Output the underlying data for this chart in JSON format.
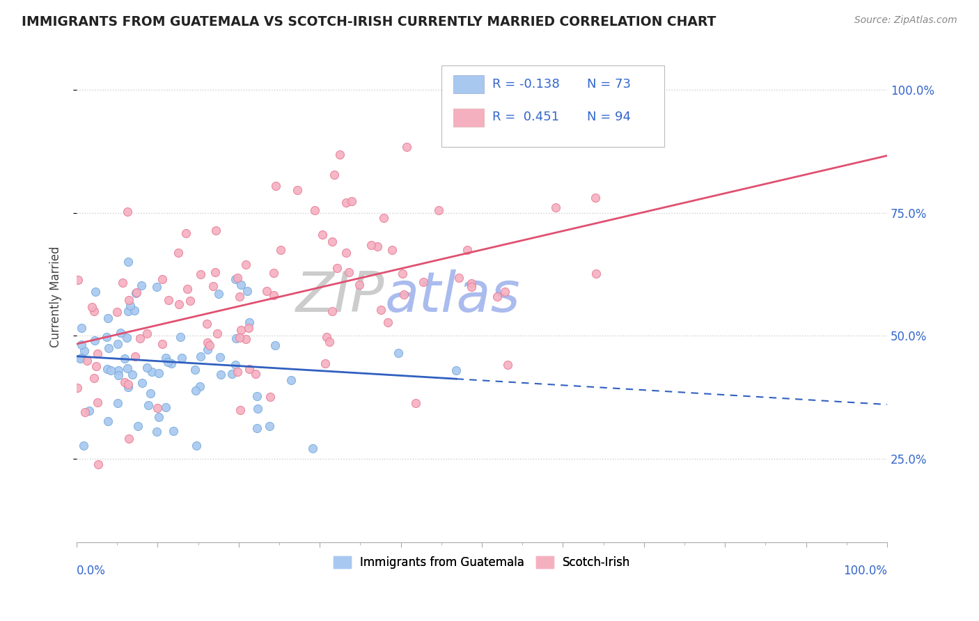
{
  "title": "IMMIGRANTS FROM GUATEMALA VS SCOTCH-IRISH CURRENTLY MARRIED CORRELATION CHART",
  "source_text": "Source: ZipAtlas.com",
  "ylabel": "Currently Married",
  "y_tick_labels": [
    "25.0%",
    "50.0%",
    "75.0%",
    "100.0%"
  ],
  "y_tick_values": [
    0.25,
    0.5,
    0.75,
    1.0
  ],
  "legend_blue_label": "Immigrants from Guatemala",
  "legend_pink_label": "Scotch-Irish",
  "blue_r": -0.138,
  "blue_n": 73,
  "pink_r": 0.451,
  "pink_n": 94,
  "blue_color": "#A8C8F0",
  "blue_edge_color": "#7AAEDD",
  "pink_color": "#F5B0C0",
  "pink_edge_color": "#E8809A",
  "blue_line_color": "#3060C0",
  "pink_line_color": "#E05070",
  "label_color": "#3366CC",
  "background_color": "#FFFFFF",
  "x_lim": [
    0.0,
    1.0
  ],
  "y_lim": [
    0.08,
    1.08
  ],
  "grid_color": "#CCCCCC",
  "watermark_zip_color": "#CCCCCC",
  "watermark_atlas_color": "#AABBEE"
}
